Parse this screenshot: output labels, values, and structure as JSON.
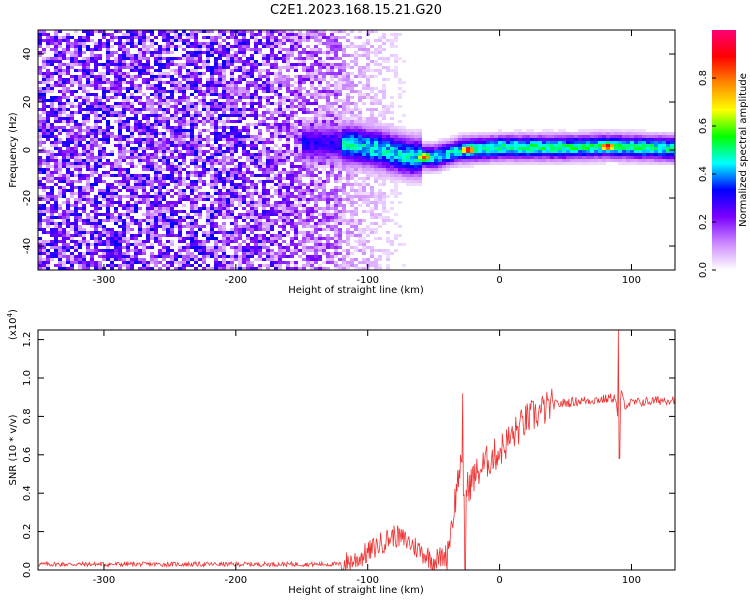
{
  "title": "C2E1.2023.168.15.21.G20",
  "chart_data": [
    {
      "type": "heatmap",
      "xlabel": "Height of straight line (km)",
      "ylabel": "Frequency (Hz)",
      "xlim": [
        -350,
        133
      ],
      "ylim": [
        -50,
        50
      ],
      "xticks": [
        -300,
        -200,
        -100,
        0,
        100
      ],
      "xtick_labels": [
        "-300",
        "-200",
        "-100",
        "0",
        "100"
      ],
      "yticks": [
        -40,
        -20,
        0,
        20,
        40
      ],
      "ytick_labels": [
        "-40",
        "-20",
        "0",
        "20",
        "40"
      ],
      "colorbar": {
        "label": "Normalized spectral amplitude",
        "range": [
          0,
          1
        ],
        "ticks": [
          0.0,
          0.2,
          0.4,
          0.6,
          0.8
        ],
        "tick_labels": [
          "0.0",
          "0.2",
          "0.4",
          "0.6",
          "0.8"
        ],
        "colors": [
          "#ffffff",
          "#cc88ff",
          "#7a00ff",
          "#0000ff",
          "#00ffff",
          "#00ff00",
          "#ffff00",
          "#ff8800",
          "#ff0000",
          "#ff0077"
        ]
      },
      "features": {
        "broadband_noise_region_km": [
          -350,
          -120
        ],
        "band_center_hz": [
          {
            "x": -140,
            "y": 3
          },
          {
            "x": -110,
            "y": 2
          },
          {
            "x": -90,
            "y": 0
          },
          {
            "x": -70,
            "y": -3
          },
          {
            "x": -50,
            "y": -3
          },
          {
            "x": -30,
            "y": 0
          },
          {
            "x": 0,
            "y": 1
          },
          {
            "x": 50,
            "y": 1
          },
          {
            "x": 80,
            "y": 1.5
          },
          {
            "x": 133,
            "y": 0.5
          }
        ],
        "peaks": [
          {
            "x": -58,
            "y": -3,
            "amplitude": 0.85
          },
          {
            "x": -25,
            "y": 0,
            "amplitude": 0.95
          },
          {
            "x": 80,
            "y": 1.5,
            "amplitude": 0.95
          }
        ]
      }
    },
    {
      "type": "line",
      "xlabel": "Height of straight line (km)",
      "ylabel": "SNR (10 * v/v)",
      "y_multiplier_label": "(x10",
      "y_multiplier_exp": "4",
      "y_multiplier_close": ")",
      "xlim": [
        -350,
        133
      ],
      "ylim": [
        0,
        1.25
      ],
      "xticks": [
        -300,
        -200,
        -100,
        0,
        100
      ],
      "xtick_labels": [
        "-300",
        "-200",
        "-100",
        "0",
        "100"
      ],
      "yticks": [
        0.0,
        0.2,
        0.4,
        0.6,
        0.8,
        1.0,
        1.2
      ],
      "ytick_labels": [
        "0.0",
        "0.2",
        "0.4",
        "0.6",
        "0.8",
        "1.0",
        "1.2"
      ],
      "color": "#ee3333",
      "x": [
        -350,
        -120,
        -110,
        -100,
        -90,
        -80,
        -70,
        -60,
        -50,
        -40,
        -35,
        -30,
        -27,
        -25,
        -20,
        -10,
        0,
        10,
        20,
        30,
        40,
        60,
        80,
        88,
        90,
        92,
        95,
        100,
        133
      ],
      "y": [
        0.03,
        0.03,
        0.05,
        0.09,
        0.14,
        0.18,
        0.15,
        0.1,
        0.05,
        0.08,
        0.3,
        0.55,
        0.4,
        0.42,
        0.48,
        0.56,
        0.62,
        0.7,
        0.78,
        0.82,
        0.86,
        0.88,
        0.89,
        0.9,
        0.75,
        0.92,
        0.86,
        0.87,
        0.89
      ],
      "spikes": [
        {
          "x": -28,
          "y": 0.92
        },
        {
          "x": -26,
          "y": 0.0
        },
        {
          "x": 90,
          "y": 1.25
        },
        {
          "x": 91,
          "y": 0.58
        }
      ]
    }
  ]
}
